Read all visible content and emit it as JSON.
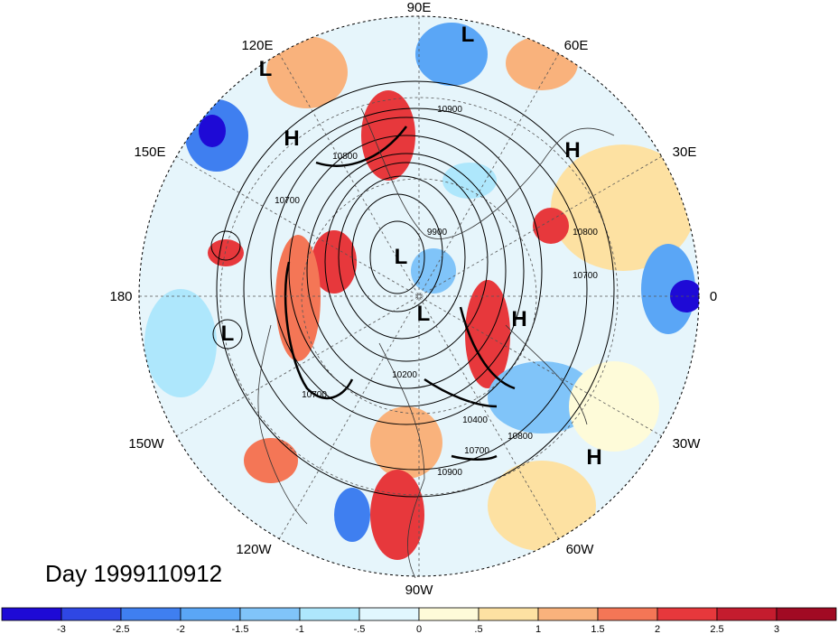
{
  "date_label": "Day 1999110912",
  "longitude_labels": [
    {
      "text": "90E",
      "lon": 90
    },
    {
      "text": "60E",
      "lon": 60
    },
    {
      "text": "30E",
      "lon": 30
    },
    {
      "text": "0",
      "lon": 0
    },
    {
      "text": "30W",
      "lon": -30
    },
    {
      "text": "60W",
      "lon": -60
    },
    {
      "text": "90W",
      "lon": -90
    },
    {
      "text": "120W",
      "lon": -120
    },
    {
      "text": "150W",
      "lon": -150
    },
    {
      "text": "180",
      "lon": 180
    },
    {
      "text": "150E",
      "lon": 150
    },
    {
      "text": "120E",
      "lon": 120
    }
  ],
  "pressure_centers": [
    {
      "label": "L",
      "name": "low-north-top"
    },
    {
      "label": "L",
      "name": "low-120e"
    },
    {
      "label": "H",
      "name": "high-siberia"
    },
    {
      "label": "H",
      "name": "high-europe"
    },
    {
      "label": "L",
      "name": "low-arctic"
    },
    {
      "label": "L",
      "name": "low-pole"
    },
    {
      "label": "H",
      "name": "high-atlantic"
    },
    {
      "label": "L",
      "name": "low-pacific"
    },
    {
      "label": "H",
      "name": "high-south-atlantic"
    }
  ],
  "contour_labels": [
    "10900",
    "10800",
    "10700",
    "9900",
    "10800",
    "10700",
    "10700",
    "10200",
    "10400",
    "10800",
    "10700",
    "10900"
  ],
  "colorbar": {
    "ticks": [
      "-3",
      "-2.5",
      "-2",
      "-1.5",
      "-1",
      "-.5",
      "0",
      ".5",
      "1",
      "1.5",
      "2",
      "2.5",
      "3"
    ],
    "colors": [
      "#1e0ad6",
      "#2f47e4",
      "#3f7ff0",
      "#5aa6f6",
      "#80c4f9",
      "#aee7fc",
      "#e1f7fe",
      "#fefbd9",
      "#fde1a2",
      "#f9b27c",
      "#f47656",
      "#e7383c",
      "#c41c2e",
      "#a10a23"
    ]
  },
  "colors": {
    "background": "#ffffff",
    "outline": "#000000"
  }
}
